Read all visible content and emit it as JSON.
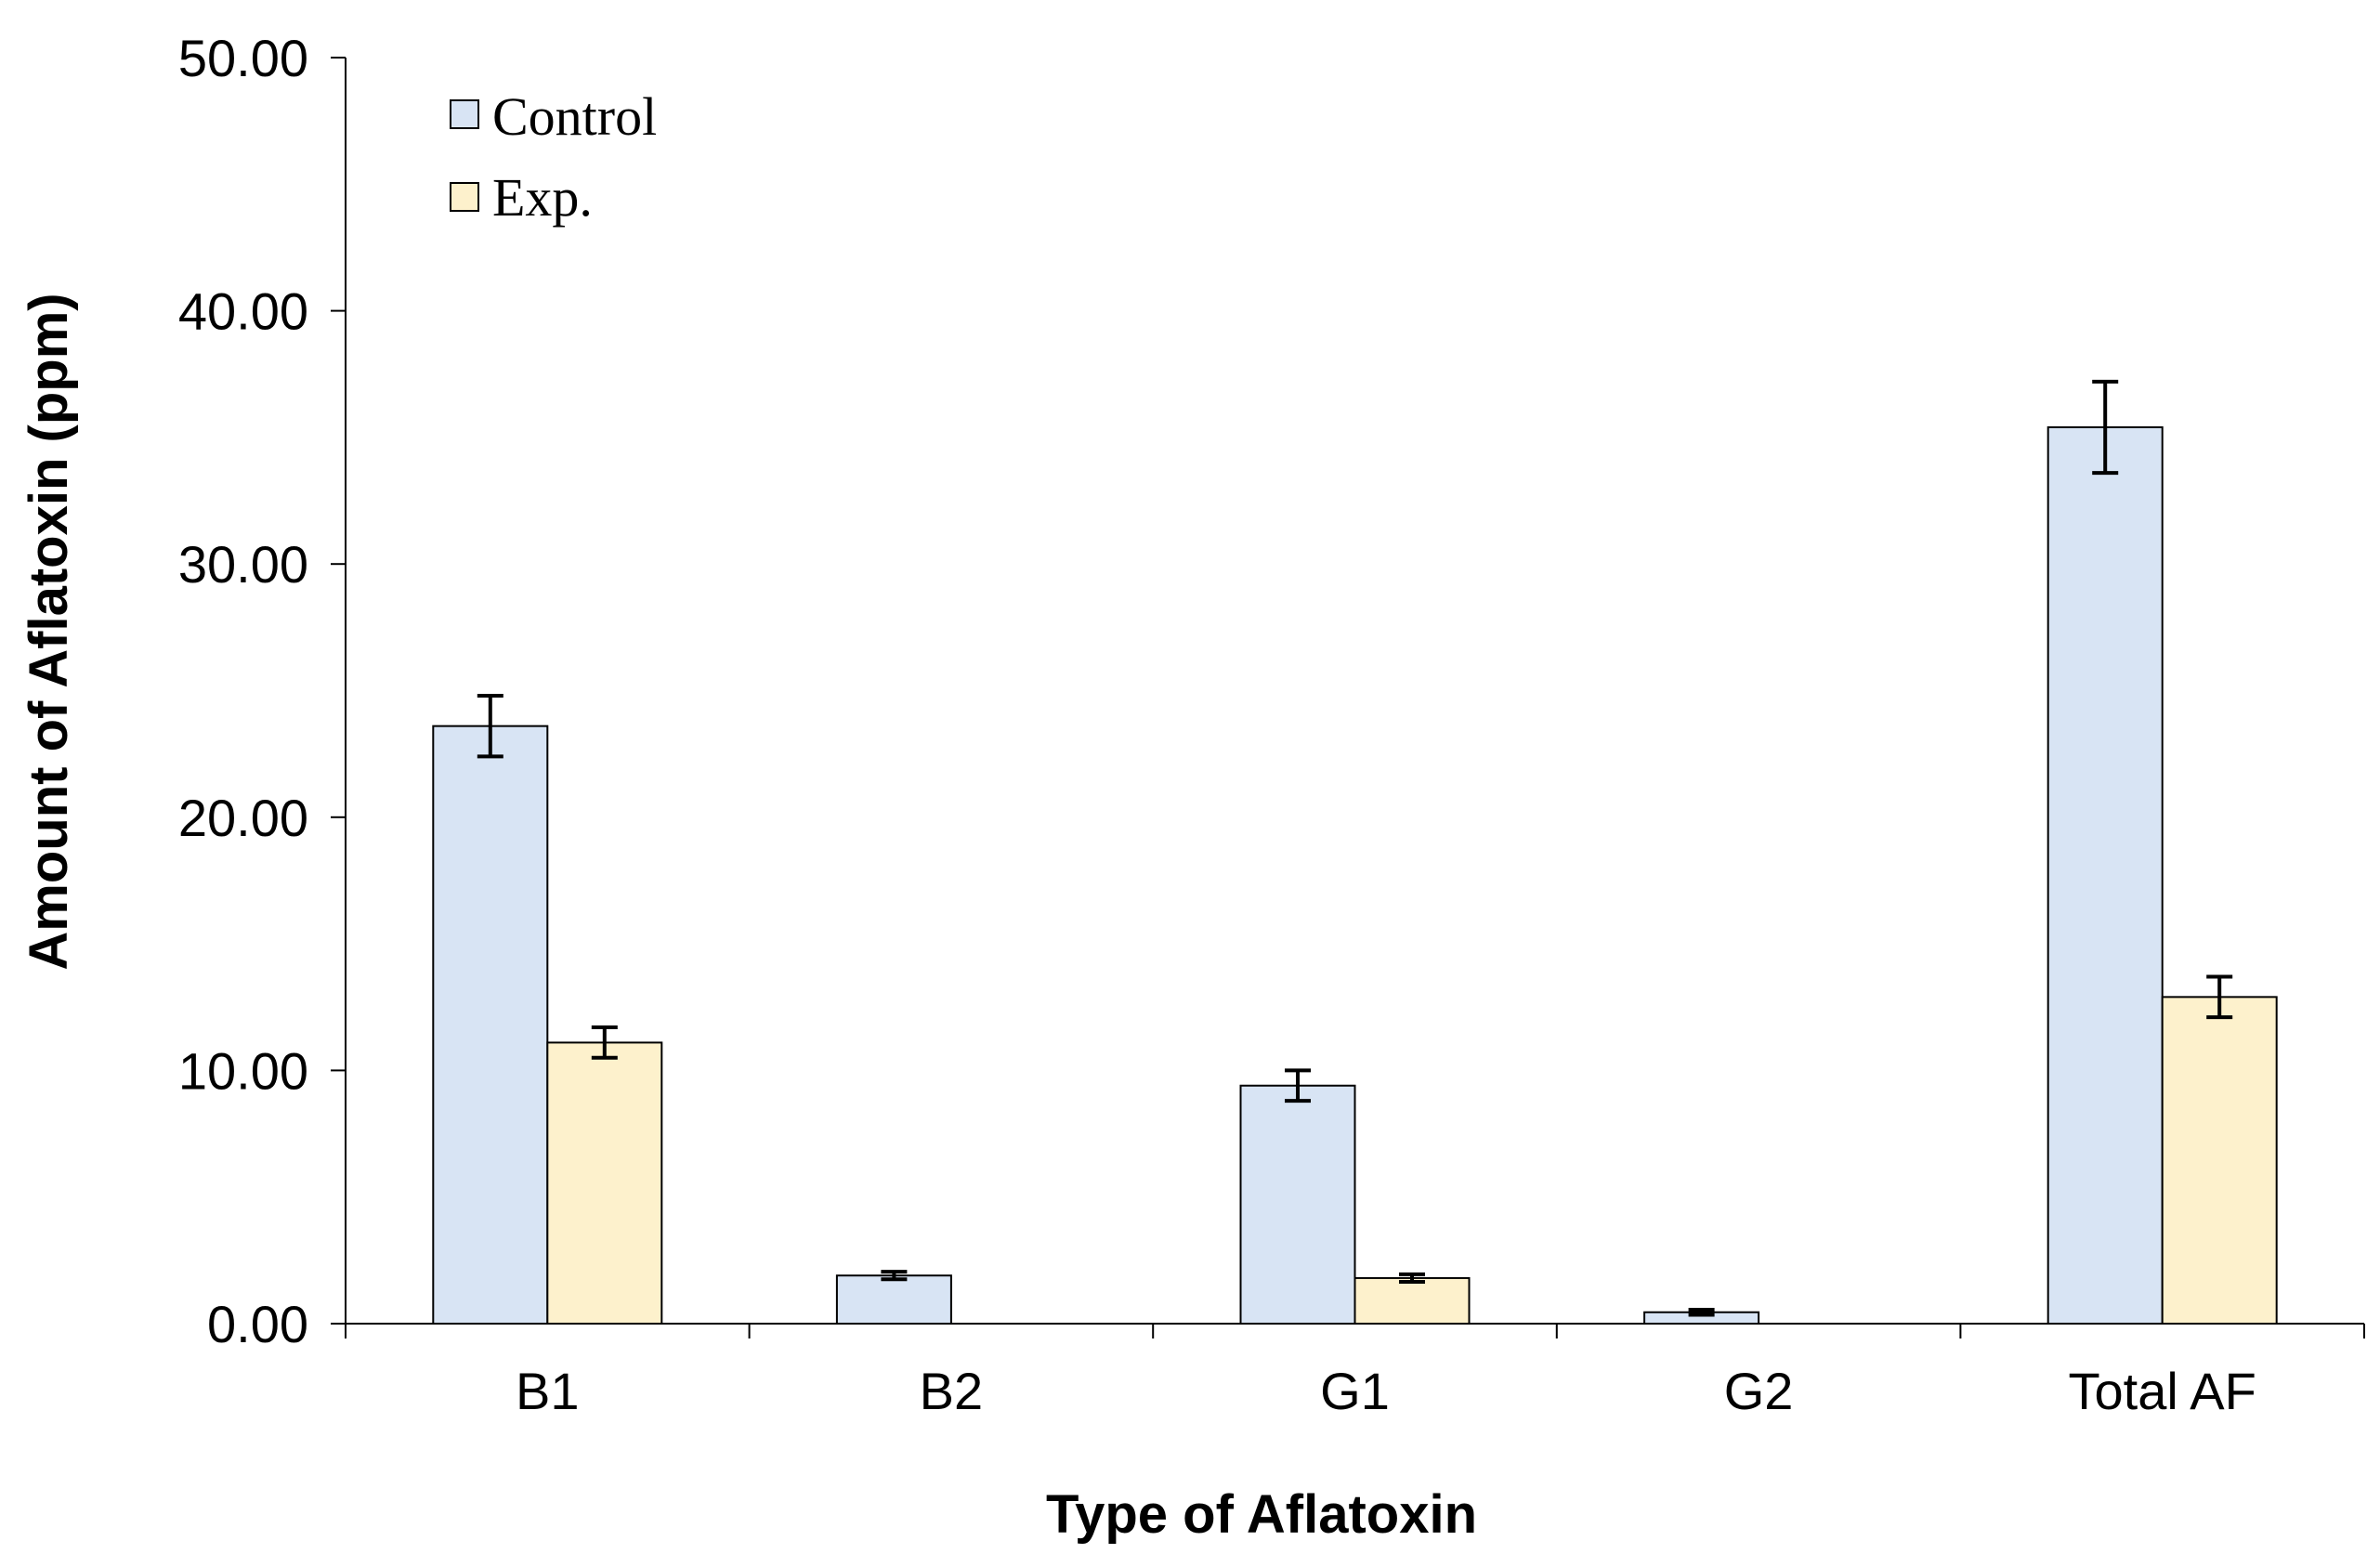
{
  "chart_data": {
    "type": "bar",
    "title": "",
    "xlabel": "Type of Aflatoxin",
    "ylabel": "Amount of Aflatoxin (ppm)",
    "categories": [
      "B1",
      "B2",
      "G1",
      "G2",
      "Total AF"
    ],
    "ylim": [
      0,
      50
    ],
    "yticks": [
      "0.00",
      "10.00",
      "20.00",
      "30.00",
      "40.00",
      "50.00"
    ],
    "grid": false,
    "legend_position": "top-left",
    "series": [
      {
        "name": "Control",
        "color": "#d8e4f4",
        "values": [
          23.6,
          1.9,
          9.4,
          0.45,
          35.4
        ],
        "errors": [
          1.2,
          0.15,
          0.6,
          0.1,
          1.8
        ]
      },
      {
        "name": "Exp.",
        "color": "#fdf1cc",
        "values": [
          11.1,
          0,
          1.8,
          0,
          12.9
        ],
        "errors": [
          0.6,
          0,
          0.15,
          0,
          0.8
        ]
      }
    ]
  }
}
